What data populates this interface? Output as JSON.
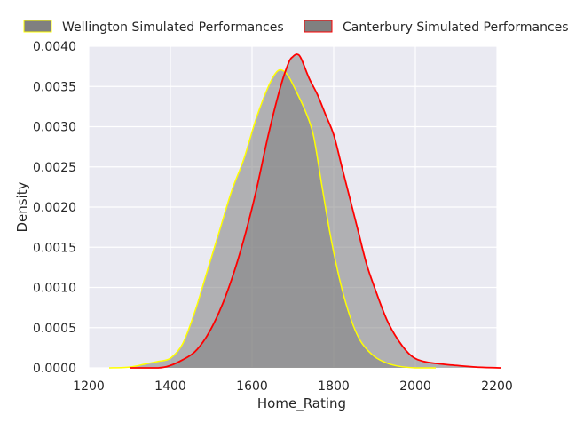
{
  "chart_data": {
    "type": "area",
    "title": "",
    "xlabel": "Home_Rating",
    "ylabel": "Density",
    "xlim": [
      1200,
      2200
    ],
    "ylim": [
      0,
      0.004
    ],
    "x_ticks": [
      1200,
      1400,
      1600,
      1800,
      2000,
      2200
    ],
    "x_tick_labels": [
      "1200",
      "1400",
      "1600",
      "1800",
      "2000",
      "2200"
    ],
    "y_ticks": [
      0,
      0.0005,
      0.001,
      0.0015,
      0.002,
      0.0025,
      0.003,
      0.0035,
      0.004
    ],
    "y_tick_labels": [
      "0.0000",
      "0.0005",
      "0.0010",
      "0.0015",
      "0.0020",
      "0.0025",
      "0.0030",
      "0.0035",
      "0.0040"
    ],
    "grid": true,
    "legend_position": "top",
    "background_color": "#eaeaf2",
    "series": [
      {
        "name": "Wellington Simulated Performances",
        "line_color": "#ffff00",
        "fill_color": "#808080",
        "x": [
          1250,
          1300,
          1340,
          1370,
          1400,
          1430,
          1460,
          1490,
          1520,
          1550,
          1580,
          1610,
          1640,
          1660,
          1675,
          1690,
          1710,
          1730,
          1750,
          1770,
          1790,
          1810,
          1830,
          1850,
          1870,
          1900,
          1930,
          1960,
          2000,
          2050
        ],
        "y": [
          0.0,
          1e-05,
          5e-05,
          8e-05,
          0.00012,
          0.0003,
          0.0007,
          0.0012,
          0.0017,
          0.0022,
          0.0026,
          0.0031,
          0.0035,
          0.00368,
          0.0037,
          0.00362,
          0.00342,
          0.0032,
          0.0029,
          0.0023,
          0.0017,
          0.0012,
          0.0008,
          0.0005,
          0.0003,
          0.00014,
          6e-05,
          2e-05,
          0.0,
          0.0
        ]
      },
      {
        "name": "Canterbury Simulated Performances",
        "line_color": "#ff0000",
        "fill_color": "#808080",
        "x": [
          1300,
          1370,
          1400,
          1430,
          1460,
          1490,
          1520,
          1550,
          1580,
          1610,
          1640,
          1670,
          1690,
          1700,
          1710,
          1720,
          1740,
          1760,
          1780,
          1800,
          1820,
          1840,
          1860,
          1880,
          1900,
          1930,
          1960,
          1990,
          2020,
          2060,
          2100,
          2150,
          2210
        ],
        "y": [
          0.0,
          0.0,
          3e-05,
          0.0001,
          0.0002,
          0.0004,
          0.0007,
          0.0011,
          0.0016,
          0.0022,
          0.0029,
          0.0035,
          0.0038,
          0.00387,
          0.0039,
          0.00385,
          0.0036,
          0.0034,
          0.00315,
          0.0029,
          0.0025,
          0.0021,
          0.0017,
          0.0013,
          0.001,
          0.0006,
          0.00033,
          0.00015,
          8e-05,
          5e-05,
          3e-05,
          1e-05,
          0.0
        ]
      }
    ]
  }
}
